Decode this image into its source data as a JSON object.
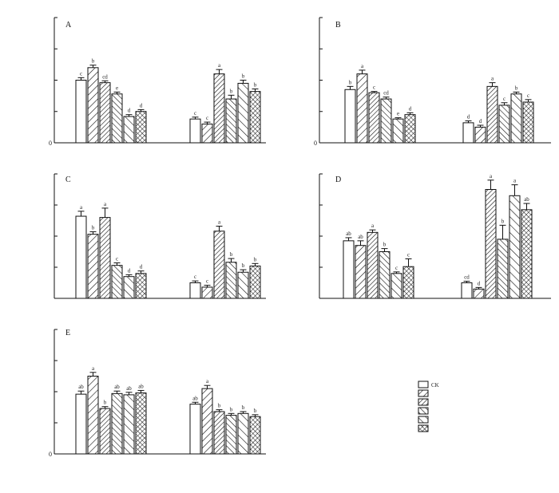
{
  "chart_data": [
    {
      "type": "bar",
      "panel": "A",
      "ylim": [
        0,
        2
      ],
      "yticks": [
        0,
        0.5,
        1,
        1.5,
        2
      ],
      "ytick_labels": [
        "0",
        "",
        "",
        "",
        ""
      ],
      "categories": [
        "",
        ""
      ],
      "series": [
        {
          "values": [
            1.0,
            0.38
          ],
          "errors": [
            0.04,
            0.03
          ],
          "sig": [
            "c",
            "c"
          ]
        },
        {
          "values": [
            1.2,
            0.3
          ],
          "errors": [
            0.04,
            0.03
          ],
          "sig": [
            "b",
            "c"
          ]
        },
        {
          "values": [
            0.96,
            1.1
          ],
          "errors": [
            0.03,
            0.07
          ],
          "sig": [
            "cd",
            "a"
          ]
        },
        {
          "values": [
            0.78,
            0.7
          ],
          "errors": [
            0.03,
            0.06
          ],
          "sig": [
            "e",
            "b"
          ]
        },
        {
          "values": [
            0.42,
            0.95
          ],
          "errors": [
            0.03,
            0.05
          ],
          "sig": [
            "d",
            "b"
          ]
        },
        {
          "values": [
            0.5,
            0.82
          ],
          "errors": [
            0.03,
            0.04
          ],
          "sig": [
            "d",
            "b"
          ]
        }
      ]
    },
    {
      "type": "bar",
      "panel": "B",
      "ylim": [
        0,
        2
      ],
      "yticks": [
        0,
        0.5,
        1,
        1.5,
        2
      ],
      "ytick_labels": [
        "0",
        "",
        "",
        "",
        ""
      ],
      "categories": [
        "",
        ""
      ],
      "series": [
        {
          "values": [
            0.85,
            0.32
          ],
          "errors": [
            0.05,
            0.03
          ],
          "sig": [
            "b",
            "d"
          ]
        },
        {
          "values": [
            1.1,
            0.25
          ],
          "errors": [
            0.06,
            0.03
          ],
          "sig": [
            "a",
            "d"
          ]
        },
        {
          "values": [
            0.8,
            0.9
          ],
          "errors": [
            0.02,
            0.06
          ],
          "sig": [
            "c",
            "a"
          ]
        },
        {
          "values": [
            0.7,
            0.6
          ],
          "errors": [
            0.03,
            0.04
          ],
          "sig": [
            "cd",
            "c"
          ]
        },
        {
          "values": [
            0.38,
            0.78
          ],
          "errors": [
            0.02,
            0.03
          ],
          "sig": [
            "e",
            "b"
          ]
        },
        {
          "values": [
            0.45,
            0.65
          ],
          "errors": [
            0.03,
            0.04
          ],
          "sig": [
            "d",
            "c"
          ]
        }
      ]
    },
    {
      "type": "bar",
      "panel": "C",
      "ylim": [
        0,
        0.2
      ],
      "yticks": [
        0,
        0.05,
        0.1,
        0.15,
        0.2
      ],
      "ytick_labels": [
        "",
        "",
        "",
        "",
        ""
      ],
      "categories": [
        "",
        ""
      ],
      "series": [
        {
          "values": [
            0.132,
            0.025
          ],
          "errors": [
            0.008,
            0.003
          ],
          "sig": [
            "a",
            "c"
          ]
        },
        {
          "values": [
            0.103,
            0.018
          ],
          "errors": [
            0.004,
            0.003
          ],
          "sig": [
            "b",
            "c"
          ]
        },
        {
          "values": [
            0.13,
            0.108
          ],
          "errors": [
            0.015,
            0.008
          ],
          "sig": [
            "a",
            "a"
          ]
        },
        {
          "values": [
            0.053,
            0.058
          ],
          "errors": [
            0.004,
            0.006
          ],
          "sig": [
            "c",
            "b"
          ]
        },
        {
          "values": [
            0.035,
            0.042
          ],
          "errors": [
            0.003,
            0.004
          ],
          "sig": [
            "d",
            "b"
          ]
        },
        {
          "values": [
            0.04,
            0.052
          ],
          "errors": [
            0.004,
            0.004
          ],
          "sig": [
            "d",
            "b"
          ]
        }
      ]
    },
    {
      "type": "bar",
      "panel": "D",
      "ylim": [
        0,
        4
      ],
      "yticks": [
        0,
        1,
        2,
        3,
        4
      ],
      "ytick_labels": [
        "",
        "",
        "",
        "",
        ""
      ],
      "categories": [
        "",
        ""
      ],
      "series": [
        {
          "values": [
            1.85,
            0.5
          ],
          "errors": [
            0.1,
            0.05
          ],
          "sig": [
            "ab",
            "cd"
          ]
        },
        {
          "values": [
            1.7,
            0.3
          ],
          "errors": [
            0.15,
            0.05
          ],
          "sig": [
            "ab",
            "d"
          ]
        },
        {
          "values": [
            2.12,
            3.5
          ],
          "errors": [
            0.08,
            0.3
          ],
          "sig": [
            "a",
            "a"
          ]
        },
        {
          "values": [
            1.5,
            1.9
          ],
          "errors": [
            0.1,
            0.45
          ],
          "sig": [
            "b",
            "b"
          ]
        },
        {
          "values": [
            0.8,
            3.3
          ],
          "errors": [
            0.05,
            0.35
          ],
          "sig": [
            "c",
            "a"
          ]
        },
        {
          "values": [
            1.02,
            2.85
          ],
          "errors": [
            0.25,
            0.2
          ],
          "sig": [
            "c",
            "ab"
          ]
        }
      ]
    },
    {
      "type": "bar",
      "panel": "E",
      "ylim": [
        0,
        2
      ],
      "yticks": [
        0,
        0.5,
        1,
        1.5,
        2
      ],
      "ytick_labels": [
        "0",
        "",
        "",
        "",
        ""
      ],
      "categories": [
        "",
        ""
      ],
      "series": [
        {
          "values": [
            0.96,
            0.8
          ],
          "errors": [
            0.05,
            0.03
          ],
          "sig": [
            "ab",
            "ab"
          ]
        },
        {
          "values": [
            1.25,
            1.05
          ],
          "errors": [
            0.06,
            0.05
          ],
          "sig": [
            "a",
            "a"
          ]
        },
        {
          "values": [
            0.73,
            0.68
          ],
          "errors": [
            0.03,
            0.03
          ],
          "sig": [
            "b",
            "b"
          ]
        },
        {
          "values": [
            0.97,
            0.62
          ],
          "errors": [
            0.04,
            0.03
          ],
          "sig": [
            "ab",
            "b"
          ]
        },
        {
          "values": [
            0.95,
            0.65
          ],
          "errors": [
            0.04,
            0.03
          ],
          "sig": [
            "ab",
            "b"
          ]
        },
        {
          "values": [
            0.98,
            0.6
          ],
          "errors": [
            0.04,
            0.03
          ],
          "sig": [
            "ab",
            "b"
          ]
        }
      ]
    }
  ],
  "legend": {
    "entries": [
      {
        "label": "CK",
        "pattern": "white"
      },
      {
        "label": "",
        "pattern": "diag-sparse"
      },
      {
        "label": "",
        "pattern": "diag-dense"
      },
      {
        "label": "",
        "pattern": "back-diag"
      },
      {
        "label": "",
        "pattern": "back-diag-sparse"
      },
      {
        "label": "",
        "pattern": "crosshatch"
      }
    ]
  },
  "colors": {
    "ink": "#111111",
    "background": "#ffffff"
  }
}
